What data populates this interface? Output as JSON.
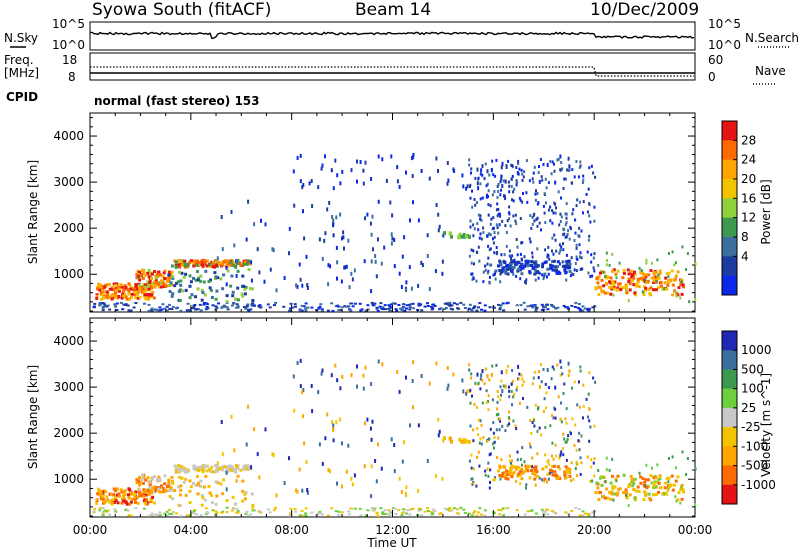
{
  "header": {
    "station": "Syowa South (fitACF)",
    "beam": "Beam 14",
    "date": "10/Dec/2009"
  },
  "top_panels": {
    "nsky_label": "N.Sky",
    "nsearch_label": "N.Search",
    "noise_ticks": [
      "10^5",
      "10^0"
    ],
    "freq_label_1": "Freq.",
    "freq_label_2": "[MHz]",
    "freq_ticks": [
      "18",
      "8"
    ],
    "nave_label": "Nave",
    "nave_ticks": [
      "60",
      "0"
    ],
    "cpid_label": "CPID",
    "cpid_text": "normal (fast stereo) 153"
  },
  "chart_data": [
    {
      "type": "heatmap",
      "title": "Power",
      "ylabel": "Slant Range [km]",
      "xlabel": "Time UT",
      "colorbar_label": "Power [dB]",
      "colorbar_ticks": [
        "28",
        "24",
        "20",
        "16",
        "12",
        "8",
        "4"
      ],
      "colorbar_colors": [
        "#e51414",
        "#ff6a00",
        "#ffa500",
        "#f2c400",
        "#8fd03c",
        "#3c9a50",
        "#3c6ea0",
        "#1e3ca0",
        "#0a28e6"
      ],
      "x_range": [
        "00:00",
        "24:00"
      ],
      "ylim": [
        180,
        4500
      ],
      "y_ticks": [
        1000,
        2000,
        3000,
        4000
      ],
      "x_ticks": [
        "00:00",
        "04:00",
        "08:00",
        "12:00",
        "16:00",
        "20:00",
        "00:00"
      ]
    },
    {
      "type": "heatmap",
      "title": "Velocity",
      "ylabel": "Slant Range [km]",
      "xlabel": "Time UT",
      "colorbar_label": "Velocity [m s^-1]",
      "colorbar_ticks": [
        "1000",
        "500",
        "100",
        "25",
        "-25",
        "-100",
        "-500",
        "-1000"
      ],
      "colorbar_colors": [
        "#1e28b4",
        "#3c6ea0",
        "#3c9a50",
        "#6ccf3c",
        "#c8c8c8",
        "#f2c400",
        "#ffa500",
        "#ff6a00",
        "#e51414"
      ],
      "x_range": [
        "00:00",
        "24:00"
      ],
      "ylim": [
        180,
        4500
      ],
      "y_ticks": [
        1000,
        2000,
        3000,
        4000
      ],
      "x_ticks": [
        "00:00",
        "04:00",
        "08:00",
        "12:00",
        "16:00",
        "20:00",
        "00:00"
      ]
    }
  ]
}
